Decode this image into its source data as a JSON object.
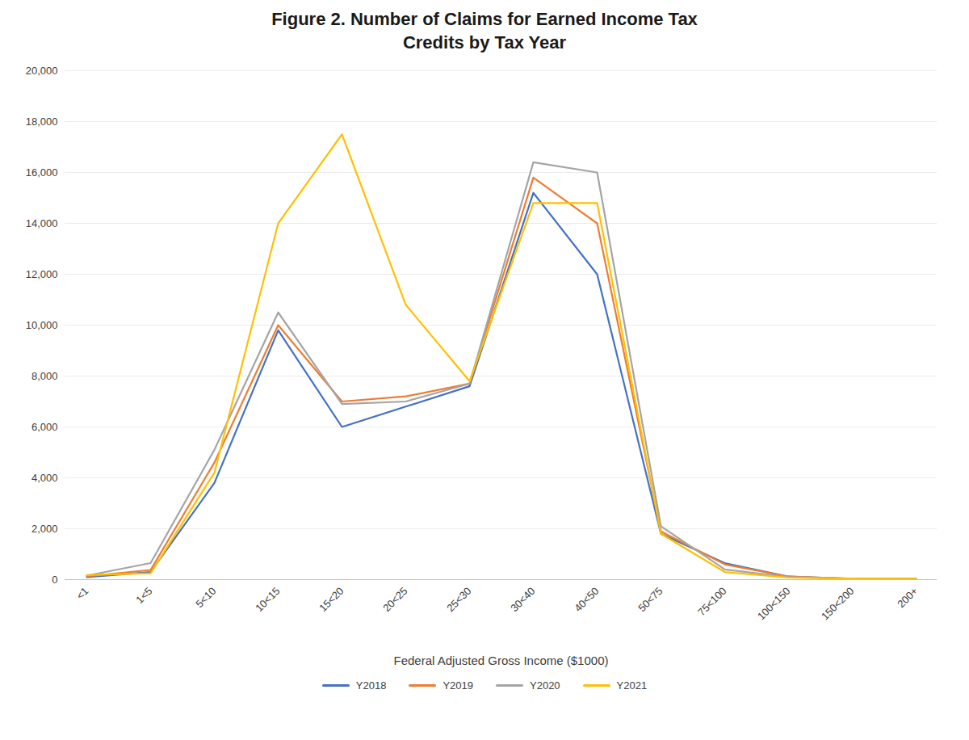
{
  "chart_data": {
    "type": "line",
    "title": "Figure 2. Number of Claims for Earned Income Tax\nCredits by Tax Year",
    "xlabel": "Federal Adjusted Gross Income ($1000)",
    "categories": [
      "<1",
      "1<5",
      "5<10",
      "10<15",
      "15<20",
      "20<25",
      "25<30",
      "30<40",
      "40<50",
      "50<75",
      "75<100",
      "100<150",
      "150<200",
      "200+"
    ],
    "series": [
      {
        "name": "Y2018",
        "color": "#4472C4",
        "values": [
          100,
          300,
          3800,
          9800,
          6000,
          6800,
          7600,
          15200,
          12000,
          1800,
          650,
          120,
          40,
          30
        ]
      },
      {
        "name": "Y2019",
        "color": "#ED7D31",
        "values": [
          130,
          380,
          4600,
          10000,
          7000,
          7200,
          7700,
          15800,
          14000,
          1900,
          600,
          120,
          40,
          30
        ]
      },
      {
        "name": "Y2020",
        "color": "#A5A5A5",
        "values": [
          160,
          650,
          5100,
          10500,
          6900,
          7000,
          7700,
          16400,
          16000,
          2100,
          400,
          100,
          40,
          30
        ]
      },
      {
        "name": "Y2021",
        "color": "#FFC000",
        "values": [
          180,
          250,
          4200,
          14000,
          17500,
          10800,
          7800,
          14800,
          14800,
          1800,
          300,
          80,
          40,
          25
        ]
      }
    ],
    "ylim": [
      0,
      20000
    ],
    "yticks": [
      0,
      {
        "value": 2000,
        "label": "2,000"
      },
      {
        "value": 4000,
        "label": "4,000"
      },
      {
        "value": 6000,
        "label": "6,000"
      },
      {
        "value": 8000,
        "label": "8,000"
      },
      {
        "value": 10000,
        "label": "10,000"
      },
      {
        "value": 12000,
        "label": "12,000"
      },
      {
        "value": 14000,
        "label": "14,000"
      },
      {
        "value": 16000,
        "label": "16,000"
      },
      {
        "value": 18000,
        "label": "18,000"
      },
      {
        "value": 20000,
        "label": "20,000"
      }
    ],
    "grid": true,
    "legend": "bottom"
  }
}
